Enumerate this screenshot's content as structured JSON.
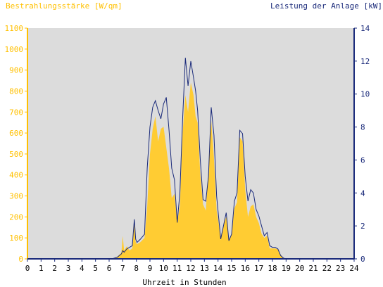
{
  "chart_data": {
    "type": "area",
    "left_axis_title": "Bestrahlungsstärke [W/qm]",
    "right_axis_title": "Leistung der Anlage [kW]",
    "xlabel": "Uhrzeit in Stunden",
    "xlim": [
      0,
      24
    ],
    "ylim_left": [
      0,
      1100
    ],
    "ylim_right": [
      0,
      14
    ],
    "x_ticks": [
      "0",
      "1",
      "2",
      "3",
      "4",
      "5",
      "6",
      "7",
      "8",
      "9",
      "10",
      "11",
      "12",
      "13",
      "14",
      "15",
      "16",
      "17",
      "18",
      "19",
      "20",
      "21",
      "22",
      "23",
      "24"
    ],
    "left_ticks": [
      "0",
      "100",
      "200",
      "300",
      "400",
      "500",
      "600",
      "700",
      "800",
      "900",
      "1000",
      "1100"
    ],
    "right_ticks": [
      "0",
      "2",
      "4",
      "6",
      "8",
      "10",
      "12",
      "14"
    ],
    "grid": false,
    "colors": {
      "irradiance_fill": "#ffcc33",
      "power_line": "#1a2a7a",
      "plot_bg": "#dcdcdc",
      "left_axis": "#ffc000",
      "right_axis": "#1a2a7a"
    },
    "series": [
      {
        "axis": "left",
        "style": "filled-area",
        "x": [
          0,
          6.2,
          6.6,
          6.9,
          7.0,
          7.1,
          7.3,
          7.5,
          7.7,
          7.85,
          7.95,
          8.05,
          8.3,
          8.6,
          8.8,
          9.0,
          9.2,
          9.4,
          9.6,
          9.8,
          10.0,
          10.2,
          10.4,
          10.6,
          10.8,
          11.0,
          11.2,
          11.4,
          11.6,
          11.8,
          12.0,
          12.2,
          12.35,
          12.5,
          12.7,
          12.9,
          13.1,
          13.3,
          13.5,
          13.7,
          13.9,
          14.05,
          14.2,
          14.4,
          14.6,
          14.8,
          15.0,
          15.2,
          15.4,
          15.6,
          15.8,
          16.0,
          16.2,
          16.4,
          16.6,
          16.8,
          17.0,
          17.2,
          17.4,
          17.6,
          17.8,
          18.0,
          18.2,
          18.4,
          18.6,
          18.8,
          18.95,
          24
        ],
        "y": [
          0,
          0,
          10,
          30,
          110,
          40,
          60,
          40,
          50,
          170,
          80,
          70,
          80,
          100,
          250,
          500,
          620,
          680,
          560,
          620,
          630,
          530,
          430,
          290,
          310,
          180,
          250,
          600,
          780,
          700,
          840,
          780,
          680,
          650,
          400,
          260,
          230,
          420,
          660,
          480,
          230,
          170,
          90,
          160,
          200,
          90,
          120,
          240,
          270,
          580,
          560,
          330,
          200,
          250,
          260,
          200,
          170,
          120,
          100,
          110,
          50,
          50,
          50,
          45,
          20,
          5,
          0,
          0
        ]
      },
      {
        "axis": "right",
        "style": "line",
        "x": [
          0,
          6.2,
          6.6,
          6.9,
          7.0,
          7.1,
          7.3,
          7.5,
          7.7,
          7.85,
          7.95,
          8.05,
          8.3,
          8.6,
          8.8,
          9.0,
          9.2,
          9.4,
          9.6,
          9.8,
          10.0,
          10.2,
          10.4,
          10.6,
          10.8,
          11.0,
          11.2,
          11.4,
          11.6,
          11.8,
          12.0,
          12.2,
          12.35,
          12.5,
          12.7,
          12.9,
          13.1,
          13.3,
          13.5,
          13.7,
          13.9,
          14.05,
          14.2,
          14.4,
          14.6,
          14.8,
          15.0,
          15.2,
          15.4,
          15.6,
          15.8,
          16.0,
          16.2,
          16.4,
          16.6,
          16.8,
          17.0,
          17.2,
          17.4,
          17.6,
          17.8,
          18.0,
          18.2,
          18.4,
          18.6,
          18.8,
          18.95,
          24
        ],
        "y": [
          0,
          0,
          0.1,
          0.3,
          0.5,
          0.4,
          0.6,
          0.7,
          0.8,
          2.4,
          1.2,
          1.0,
          1.2,
          1.5,
          5.5,
          8.0,
          9.2,
          9.6,
          9.0,
          8.5,
          9.4,
          9.8,
          7.8,
          5.5,
          4.8,
          2.2,
          4.0,
          8.5,
          12.2,
          10.5,
          12.0,
          11.0,
          10.2,
          9.0,
          6.0,
          3.6,
          3.5,
          5.0,
          9.2,
          7.5,
          3.8,
          2.5,
          1.2,
          2.0,
          2.8,
          1.1,
          1.5,
          3.5,
          4.0,
          7.8,
          7.6,
          5.0,
          3.5,
          4.2,
          4.0,
          3.0,
          2.6,
          2.0,
          1.4,
          1.6,
          0.8,
          0.7,
          0.7,
          0.6,
          0.2,
          0.05,
          0,
          0
        ]
      }
    ]
  }
}
